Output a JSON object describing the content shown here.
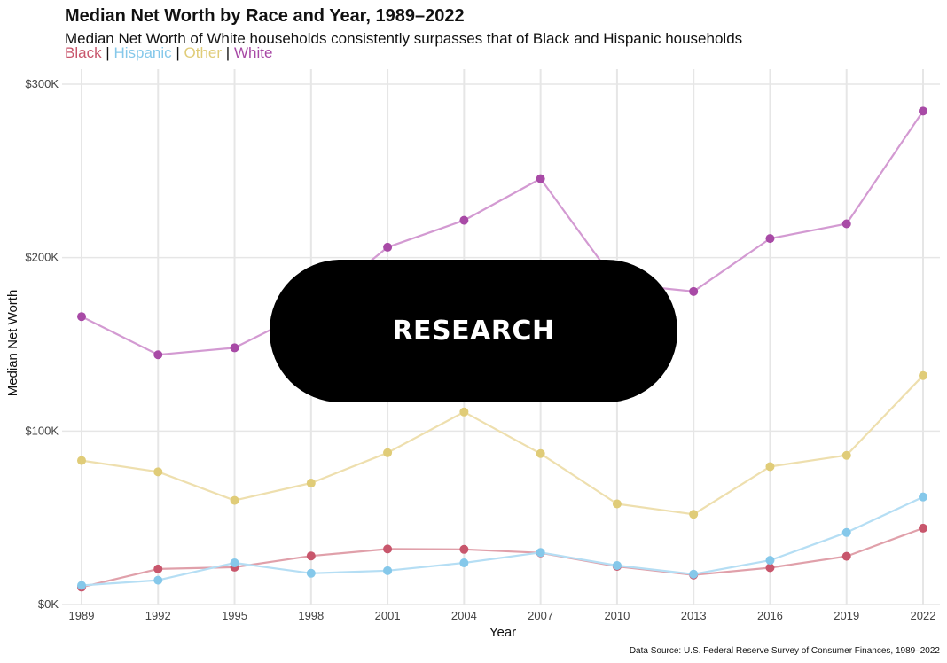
{
  "overlay": {
    "label": "RESEARCH",
    "background": "#000000",
    "text_color": "#ffffff"
  },
  "chart_data": {
    "type": "line",
    "title": "Median Net Worth by Race and Year, 1989–2022",
    "subtitle": "Median Net Worth of White households consistently surpasses that of Black and Hispanic households",
    "caption": "Data Source: U.S. Federal Reserve Survey of Consumer Finances, 1989–2022",
    "xlabel": "Year",
    "ylabel": "Median Net Worth",
    "x": [
      1989,
      1992,
      1995,
      1998,
      2001,
      2004,
      2007,
      2010,
      2013,
      2016,
      2019,
      2022
    ],
    "x_tick_labels": [
      "1989",
      "1992",
      "1995",
      "1998",
      "2001",
      "2004",
      "2007",
      "2010",
      "2013",
      "2016",
      "2019",
      "2022"
    ],
    "y_ticks": [
      0,
      100000,
      200000,
      300000
    ],
    "y_tick_labels": [
      "$0K",
      "$100K",
      "$200K",
      "$300K"
    ],
    "ylim": [
      0,
      300000
    ],
    "grid": true,
    "legend_placement": "top-left, inline below subtitle",
    "legend_separator": " | ",
    "series": [
      {
        "name": "Black",
        "color": "#c8566c",
        "line_color": "#e0a0aa",
        "values": [
          10000,
          20500,
          21500,
          28000,
          32000,
          31800,
          29800,
          22000,
          17000,
          21200,
          27800,
          44000
        ]
      },
      {
        "name": "Hispanic",
        "color": "#85c8ea",
        "line_color": "#b5def4",
        "values": [
          11000,
          14000,
          24000,
          18000,
          19500,
          24000,
          30000,
          22500,
          17500,
          25500,
          41500,
          62000
        ]
      },
      {
        "name": "Other",
        "color": "#e0cc78",
        "line_color": "#eedfae",
        "values": [
          83000,
          76500,
          60000,
          70000,
          87500,
          111000,
          87000,
          58000,
          52000,
          79500,
          86000,
          132000
        ]
      },
      {
        "name": "White",
        "color": "#a84aa6",
        "line_color": "#d39ad2",
        "values": [
          166000,
          144000,
          148000,
          170000,
          206000,
          221500,
          245500,
          185000,
          180500,
          211000,
          219500,
          284500
        ]
      }
    ]
  }
}
